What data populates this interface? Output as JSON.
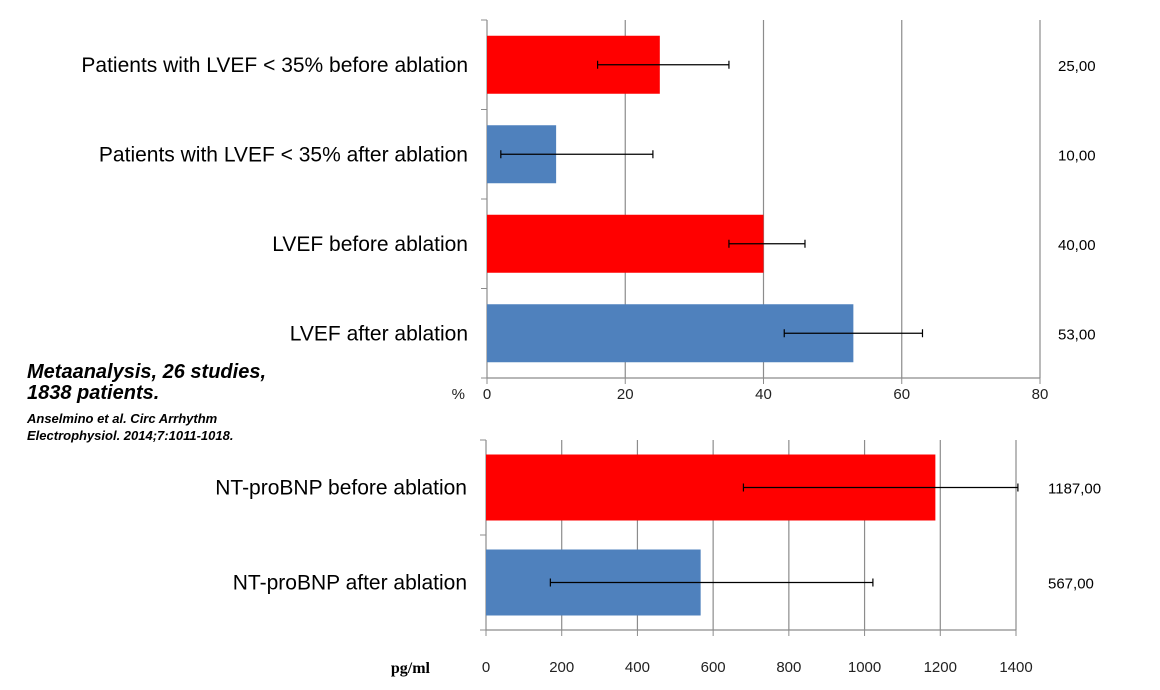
{
  "note": {
    "line1": "Metaanalysis, 26 studies,",
    "line2": "1838 patients.",
    "line3": "Anselmino et al. Circ Arrhythm",
    "line4": "Electrophysiol. 2014;7:1011-1018."
  },
  "chart_data": [
    {
      "type": "bar",
      "orientation": "horizontal",
      "unit": "%",
      "xlim": [
        0,
        80
      ],
      "ticks": [
        "0",
        "20",
        "40",
        "60",
        "80"
      ],
      "grid": true,
      "categories": [
        "Patients with LVEF < 35% before ablation",
        "Patients with LVEF < 35% after ablation",
        "LVEF before ablation",
        "LVEF after ablation"
      ],
      "values": [
        25,
        10,
        40,
        53
      ],
      "error_low": [
        16,
        2,
        35,
        43
      ],
      "error_high": [
        35,
        24,
        46,
        63
      ],
      "value_labels": [
        "25,00",
        "10,00",
        "40,00",
        "53,00"
      ],
      "colors": [
        "#ff0000",
        "#4f81bd",
        "#ff0000",
        "#4f81bd"
      ]
    },
    {
      "type": "bar",
      "orientation": "horizontal",
      "unit": "pg/ml",
      "xlim": [
        0,
        1400
      ],
      "ticks": [
        "0",
        "200",
        "400",
        "600",
        "800",
        "1000",
        "1200",
        "1400"
      ],
      "grid": true,
      "categories": [
        "NT-proBNP before ablation",
        "NT-proBNP after ablation"
      ],
      "values": [
        1187,
        567
      ],
      "error_low": [
        680,
        170
      ],
      "error_high": [
        1405,
        1022
      ],
      "value_labels": [
        "1187,00",
        "567,00"
      ],
      "colors": [
        "#ff0000",
        "#4f81bd"
      ]
    }
  ]
}
